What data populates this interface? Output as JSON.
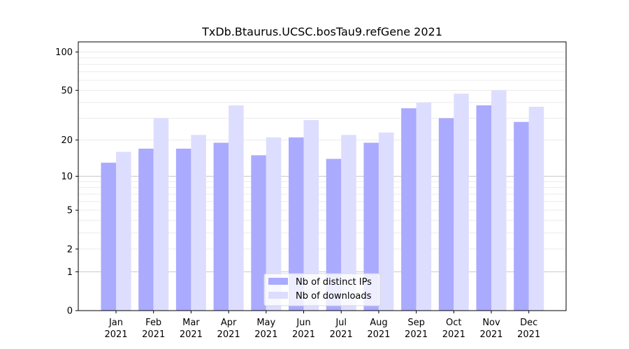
{
  "chart_data": {
    "type": "bar",
    "title": "TxDb.Btaurus.UCSC.bosTau9.refGene 2021",
    "xlabel": "",
    "ylabel": "",
    "y_scale": "log1p",
    "ylim": [
      0,
      120
    ],
    "y_ticks": [
      0,
      1,
      2,
      5,
      10,
      20,
      50,
      100
    ],
    "y_tick_labels": [
      "0",
      "1",
      "2",
      "5",
      "10",
      "20",
      "50",
      "100"
    ],
    "categories": [
      "Jan\n2021",
      "Feb\n2021",
      "Mar\n2021",
      "Apr\n2021",
      "May\n2021",
      "Jun\n2021",
      "Jul\n2021",
      "Aug\n2021",
      "Sep\n2021",
      "Oct\n2021",
      "Nov\n2021",
      "Dec\n2021"
    ],
    "series": [
      {
        "name": "Nb of distinct IPs",
        "values": [
          13,
          17,
          17,
          19,
          15,
          21,
          14,
          19,
          36,
          30,
          38,
          28
        ],
        "color": "#aaaaff"
      },
      {
        "name": "Nb of downloads",
        "values": [
          16,
          30,
          22,
          38,
          21,
          29,
          22,
          23,
          40,
          47,
          50,
          37
        ],
        "color": "#ddddff"
      }
    ],
    "grid": true,
    "legend_position": "bottom-center"
  }
}
